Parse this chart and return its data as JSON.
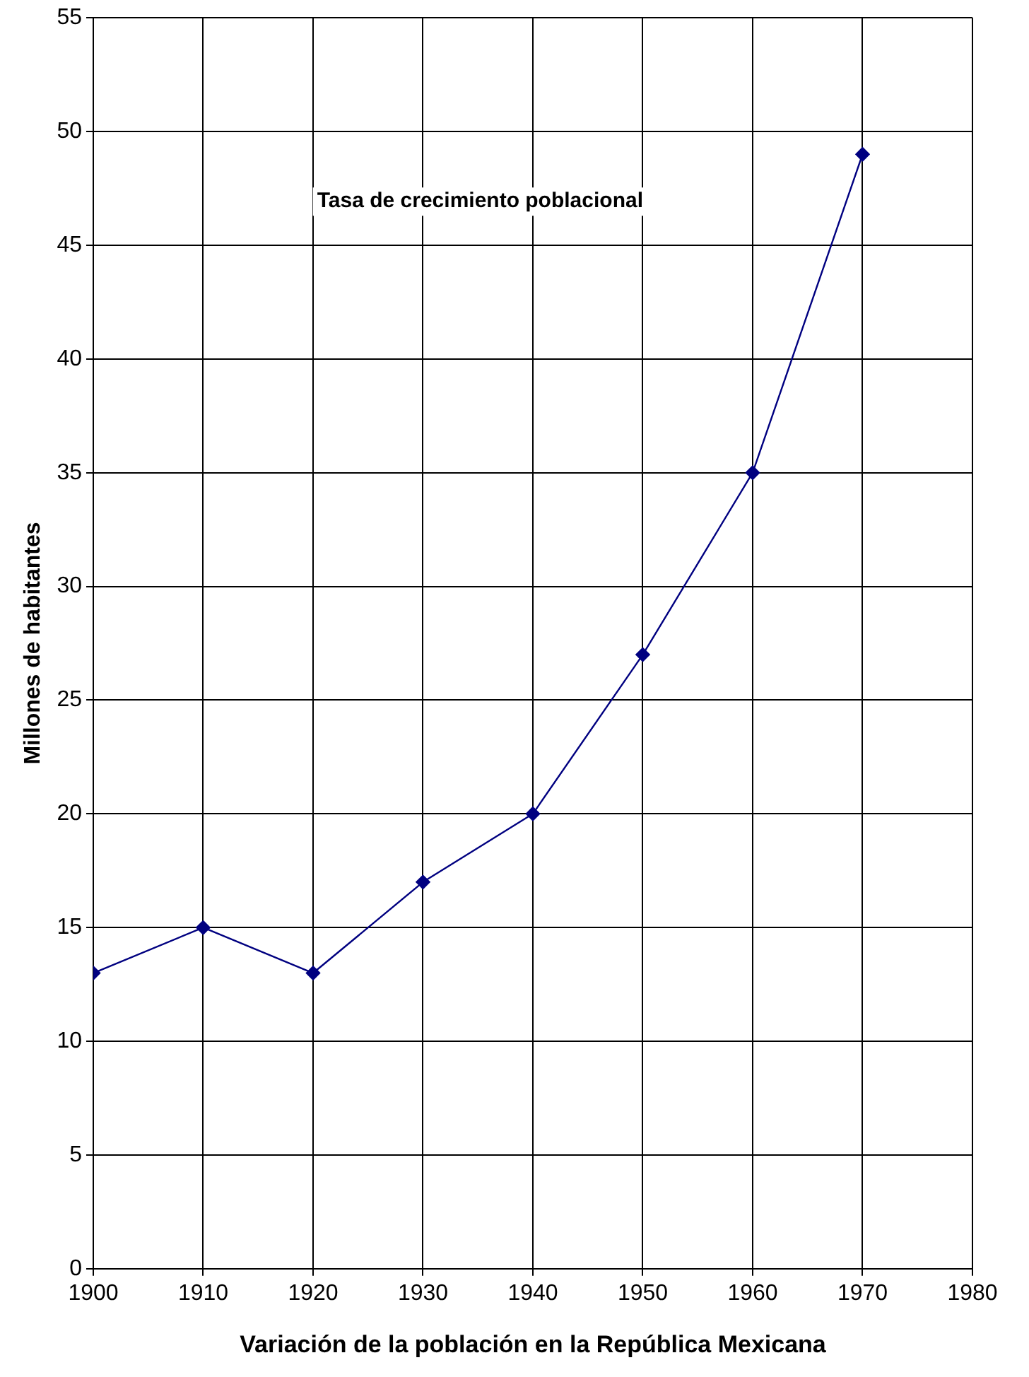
{
  "chart_data": {
    "type": "line",
    "title": "Tasa de crecimiento poblacional",
    "xlabel": "Variación de la población en la República Mexicana",
    "ylabel": "Millones de habitantes",
    "x": [
      1900,
      1910,
      1920,
      1930,
      1940,
      1950,
      1960,
      1970
    ],
    "series": [
      {
        "color": "#000080",
        "values": [
          13,
          15,
          13,
          17,
          20,
          27,
          35,
          49
        ]
      }
    ],
    "xlim": [
      1900,
      1980
    ],
    "xticks": [
      1900,
      1910,
      1920,
      1930,
      1940,
      1950,
      1960,
      1970,
      1980
    ],
    "ylim": [
      0,
      55
    ],
    "yticks": [
      0,
      5,
      10,
      15,
      20,
      25,
      30,
      35,
      40,
      45,
      50,
      55
    ],
    "grid": true,
    "legend": false,
    "marker": "diamond",
    "line_style": "solid"
  }
}
